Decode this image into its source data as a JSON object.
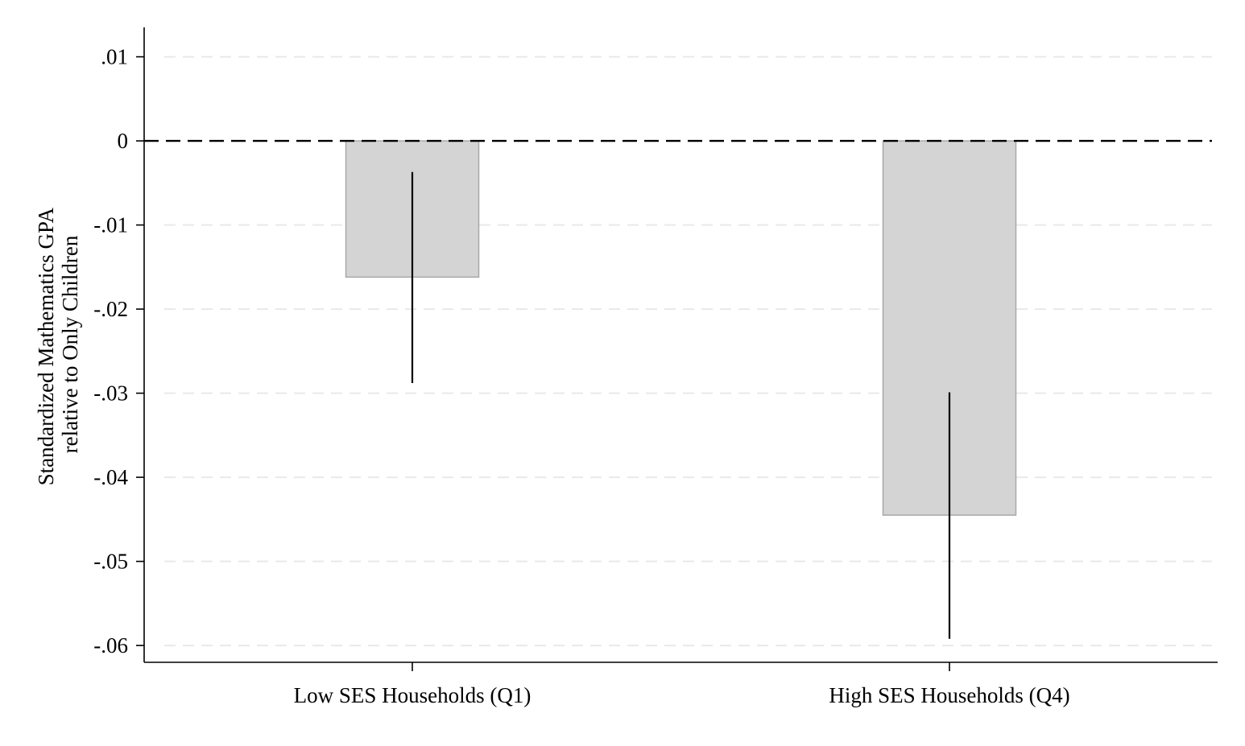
{
  "chart_data": {
    "type": "bar",
    "title": "",
    "xlabel": "",
    "ylabel_lines": [
      "Standardized Mathematics GPA",
      "relative to Only Children"
    ],
    "categories": [
      "Low SES Households (Q1)",
      "High SES Households (Q4)"
    ],
    "values": [
      -0.0162,
      -0.0445
    ],
    "error_bars": [
      {
        "low": -0.0288,
        "high": -0.0037
      },
      {
        "low": -0.0592,
        "high": -0.0299
      }
    ],
    "ylim": [
      -0.062,
      0.0135
    ],
    "yticks": [
      0.01,
      0,
      -0.01,
      -0.02,
      -0.03,
      -0.04,
      -0.05,
      -0.06
    ],
    "ytick_labels": [
      ".01",
      "0",
      "-.01",
      "-.02",
      "-.03",
      "-.04",
      "-.05",
      "-.06"
    ],
    "reference_line": 0,
    "grid": true,
    "legend": "none",
    "colors": {
      "bar_fill": "#d4d4d4",
      "bar_stroke": "#a8a8a8",
      "error_bar": "#000000",
      "grid": "#e9e9e9",
      "axis": "#000000",
      "reference_line": "#000000"
    }
  }
}
